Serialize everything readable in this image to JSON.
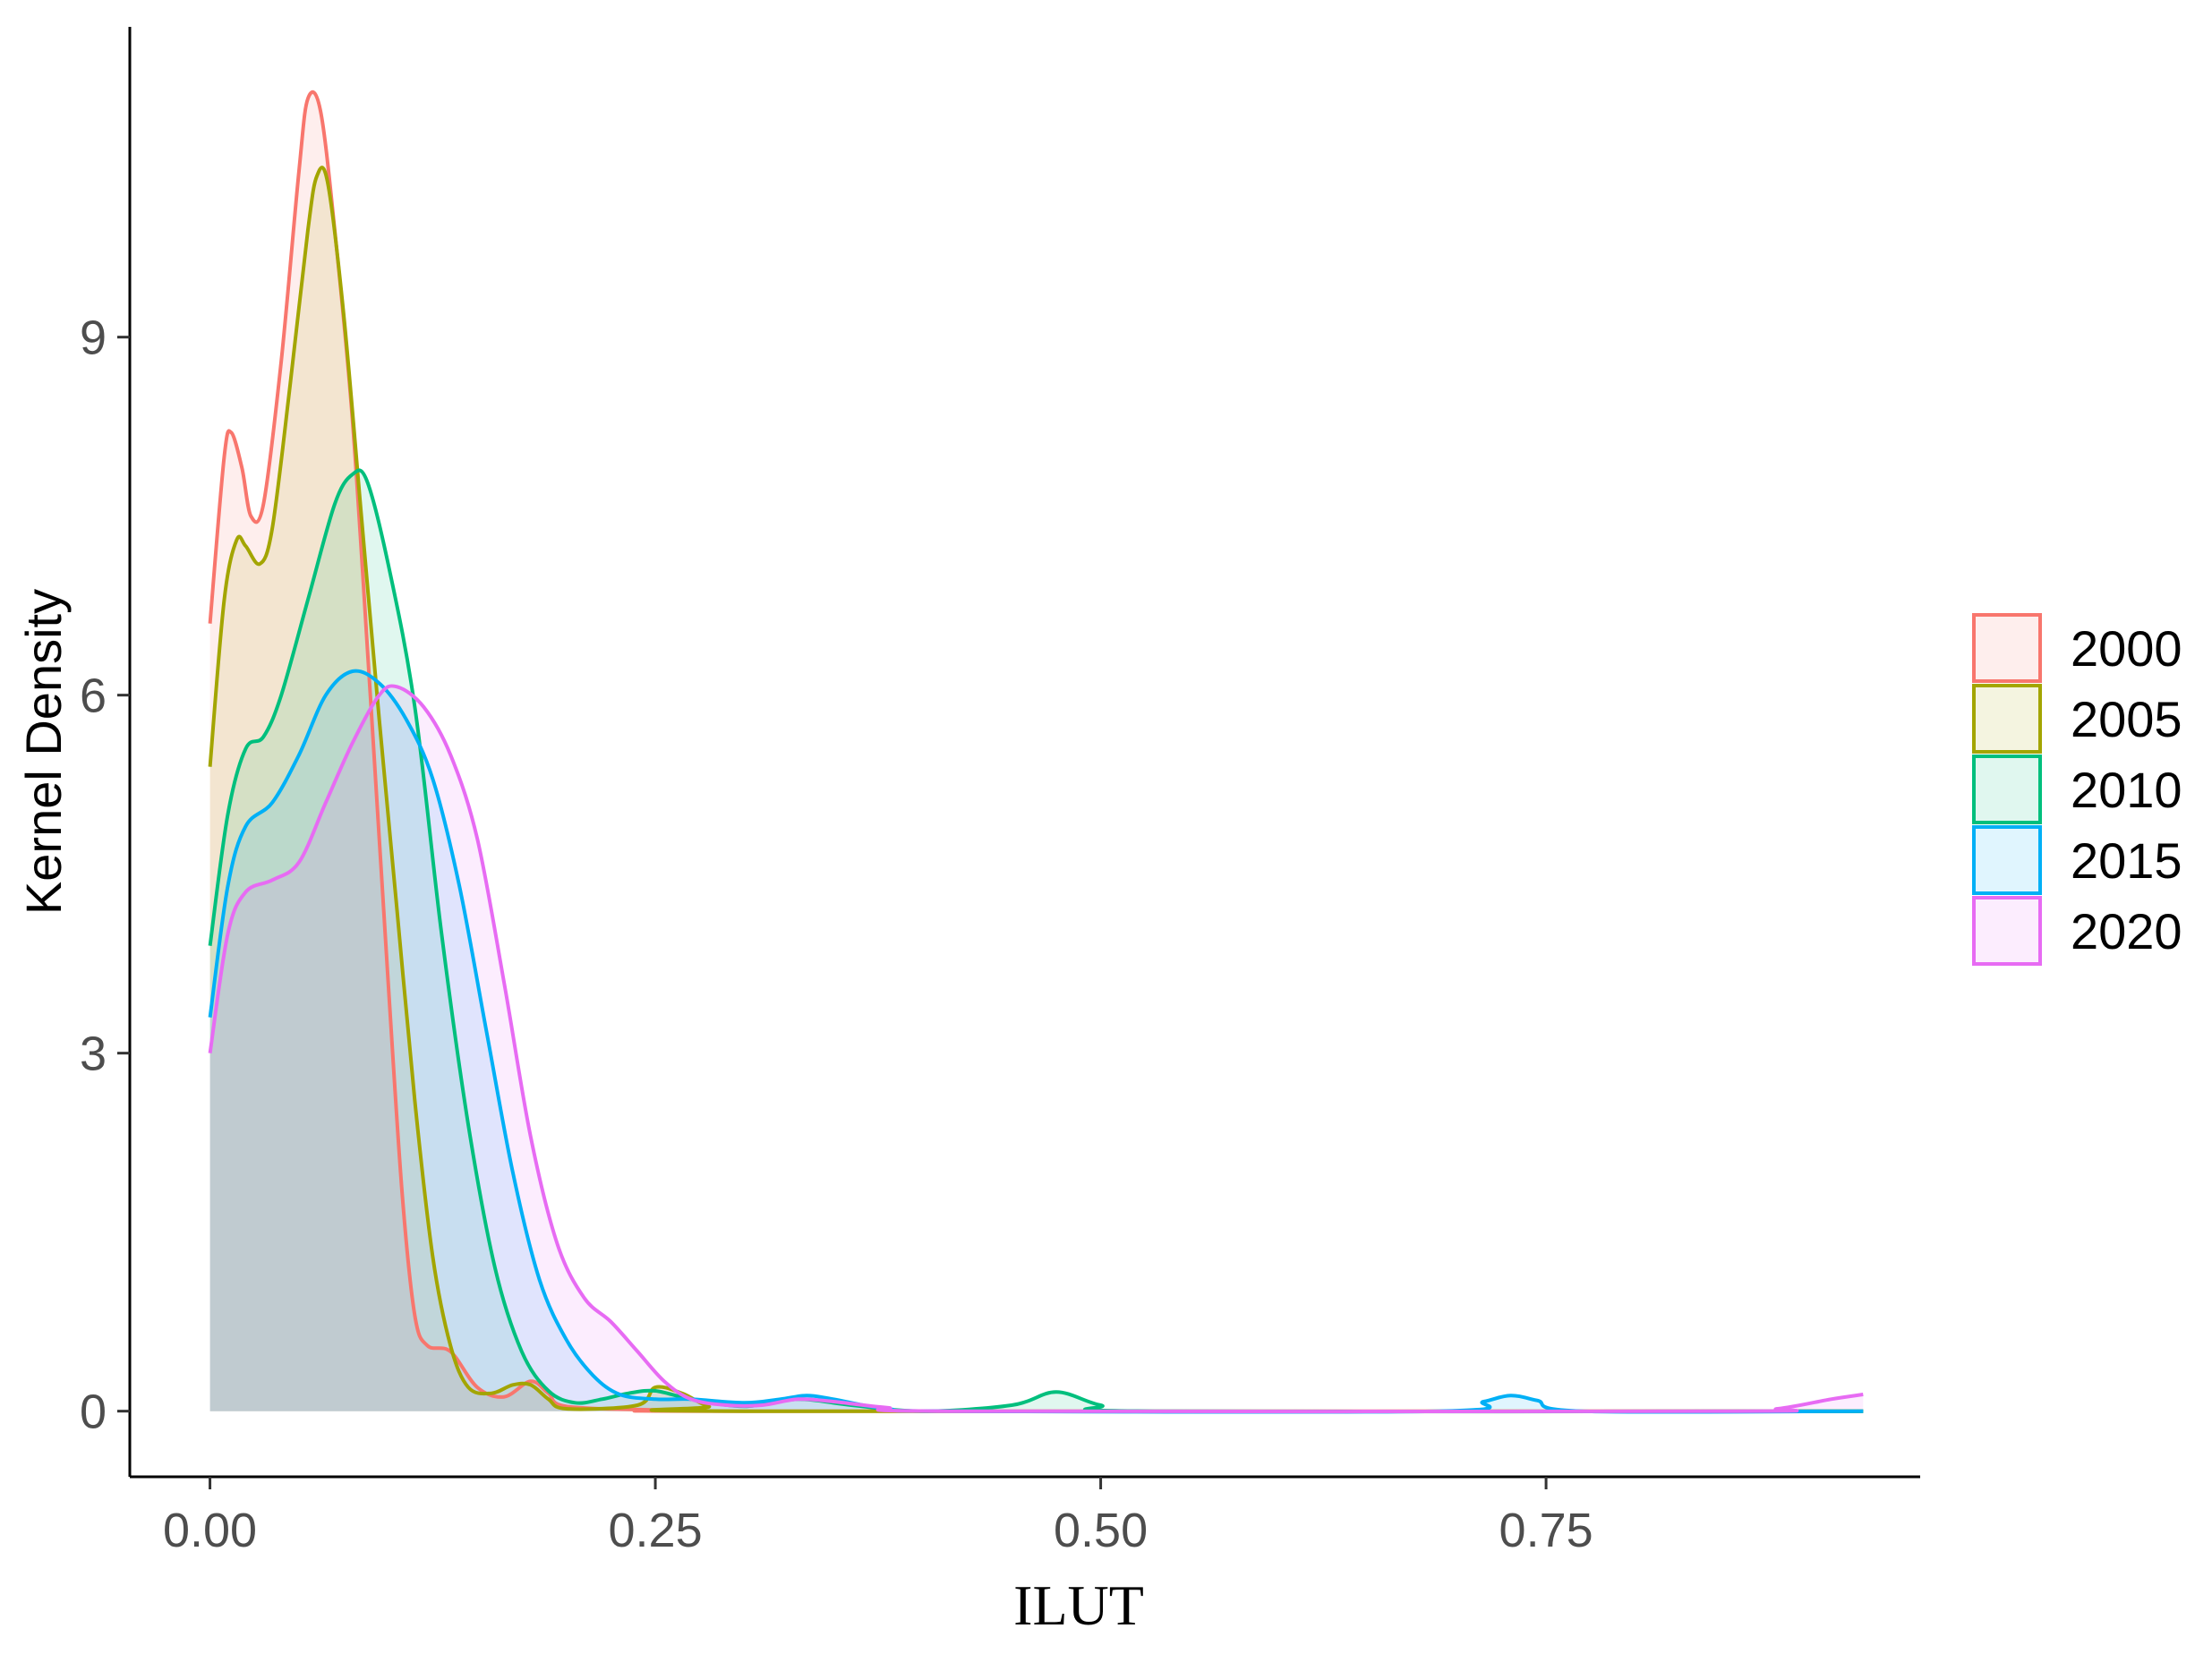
{
  "chart_data": {
    "type": "area",
    "xlabel": "ILUT",
    "ylabel": "Kernel Density",
    "xlim": [
      -0.045,
      0.96
    ],
    "ylim": [
      -0.55,
      11.6
    ],
    "x_ticks": [
      {
        "value": 0.0,
        "label": "0.00"
      },
      {
        "value": 0.25,
        "label": "0.25"
      },
      {
        "value": 0.5,
        "label": "0.50"
      },
      {
        "value": 0.75,
        "label": "0.75"
      }
    ],
    "y_ticks": [
      {
        "value": 0,
        "label": "0"
      },
      {
        "value": 3,
        "label": "3"
      },
      {
        "value": 6,
        "label": "6"
      },
      {
        "value": 9,
        "label": "9"
      }
    ],
    "grid": false,
    "legend_position": "right",
    "series": [
      {
        "name": "2000",
        "color": "#F8766D",
        "points": [
          [
            0,
            6.6
          ],
          [
            0.008,
            8.0
          ],
          [
            0.012,
            8.2
          ],
          [
            0.018,
            7.9
          ],
          [
            0.023,
            7.5
          ],
          [
            0.03,
            7.6
          ],
          [
            0.04,
            8.8
          ],
          [
            0.05,
            10.4
          ],
          [
            0.055,
            11.0
          ],
          [
            0.062,
            10.9
          ],
          [
            0.07,
            9.9
          ],
          [
            0.08,
            8.3
          ],
          [
            0.09,
            6.0
          ],
          [
            0.1,
            3.6
          ],
          [
            0.108,
            1.8
          ],
          [
            0.115,
            0.8
          ],
          [
            0.122,
            0.55
          ],
          [
            0.135,
            0.5
          ],
          [
            0.15,
            0.2
          ],
          [
            0.165,
            0.12
          ],
          [
            0.18,
            0.25
          ],
          [
            0.19,
            0.15
          ],
          [
            0.2,
            0.04
          ],
          [
            0.25,
            0.01
          ],
          [
            0.3,
            0.0
          ],
          [
            0.928,
            0.0
          ]
        ]
      },
      {
        "name": "2005",
        "color": "#A3A500",
        "points": [
          [
            0,
            5.4
          ],
          [
            0.008,
            6.8
          ],
          [
            0.015,
            7.3
          ],
          [
            0.02,
            7.25
          ],
          [
            0.028,
            7.1
          ],
          [
            0.035,
            7.4
          ],
          [
            0.045,
            8.6
          ],
          [
            0.055,
            9.9
          ],
          [
            0.06,
            10.35
          ],
          [
            0.066,
            10.3
          ],
          [
            0.075,
            9.2
          ],
          [
            0.085,
            7.5
          ],
          [
            0.095,
            5.8
          ],
          [
            0.105,
            4.2
          ],
          [
            0.115,
            2.6
          ],
          [
            0.125,
            1.3
          ],
          [
            0.135,
            0.55
          ],
          [
            0.145,
            0.2
          ],
          [
            0.158,
            0.15
          ],
          [
            0.17,
            0.22
          ],
          [
            0.18,
            0.22
          ],
          [
            0.19,
            0.1
          ],
          [
            0.2,
            0.02
          ],
          [
            0.24,
            0.05
          ],
          [
            0.25,
            0.2
          ],
          [
            0.265,
            0.15
          ],
          [
            0.28,
            0.04
          ],
          [
            0.3,
            0.0
          ],
          [
            0.928,
            0.0
          ]
        ]
      },
      {
        "name": "2010",
        "color": "#00BF7D",
        "points": [
          [
            0,
            3.9
          ],
          [
            0.01,
            5.0
          ],
          [
            0.02,
            5.55
          ],
          [
            0.03,
            5.65
          ],
          [
            0.04,
            6.0
          ],
          [
            0.055,
            6.8
          ],
          [
            0.07,
            7.6
          ],
          [
            0.08,
            7.85
          ],
          [
            0.088,
            7.8
          ],
          [
            0.1,
            7.1
          ],
          [
            0.115,
            5.9
          ],
          [
            0.13,
            4.0
          ],
          [
            0.145,
            2.4
          ],
          [
            0.16,
            1.2
          ],
          [
            0.175,
            0.5
          ],
          [
            0.19,
            0.17
          ],
          [
            0.205,
            0.07
          ],
          [
            0.22,
            0.1
          ],
          [
            0.235,
            0.15
          ],
          [
            0.25,
            0.17
          ],
          [
            0.27,
            0.1
          ],
          [
            0.3,
            0.04
          ],
          [
            0.33,
            0.1
          ],
          [
            0.36,
            0.05
          ],
          [
            0.4,
            0.0
          ],
          [
            0.45,
            0.05
          ],
          [
            0.475,
            0.16
          ],
          [
            0.5,
            0.05
          ],
          [
            0.53,
            0.0
          ],
          [
            0.928,
            0.0
          ]
        ]
      },
      {
        "name": "2015",
        "color": "#00B0F6",
        "points": [
          [
            0,
            3.3
          ],
          [
            0.01,
            4.4
          ],
          [
            0.02,
            4.9
          ],
          [
            0.035,
            5.1
          ],
          [
            0.05,
            5.5
          ],
          [
            0.065,
            6.0
          ],
          [
            0.08,
            6.2
          ],
          [
            0.095,
            6.1
          ],
          [
            0.11,
            5.8
          ],
          [
            0.125,
            5.3
          ],
          [
            0.14,
            4.4
          ],
          [
            0.155,
            3.2
          ],
          [
            0.17,
            2.0
          ],
          [
            0.185,
            1.1
          ],
          [
            0.2,
            0.6
          ],
          [
            0.215,
            0.3
          ],
          [
            0.23,
            0.14
          ],
          [
            0.25,
            0.1
          ],
          [
            0.27,
            0.1
          ],
          [
            0.3,
            0.07
          ],
          [
            0.32,
            0.1
          ],
          [
            0.335,
            0.13
          ],
          [
            0.35,
            0.1
          ],
          [
            0.38,
            0.02
          ],
          [
            0.42,
            0.0
          ],
          [
            0.69,
            0.0
          ],
          [
            0.715,
            0.08
          ],
          [
            0.73,
            0.13
          ],
          [
            0.745,
            0.09
          ],
          [
            0.77,
            0.0
          ],
          [
            0.928,
            0.0
          ]
        ]
      },
      {
        "name": "2020",
        "color": "#E76BF3",
        "points": [
          [
            0,
            3.0
          ],
          [
            0.01,
            4.0
          ],
          [
            0.02,
            4.35
          ],
          [
            0.035,
            4.45
          ],
          [
            0.05,
            4.6
          ],
          [
            0.065,
            5.1
          ],
          [
            0.08,
            5.6
          ],
          [
            0.095,
            6.0
          ],
          [
            0.105,
            6.07
          ],
          [
            0.12,
            5.9
          ],
          [
            0.135,
            5.5
          ],
          [
            0.15,
            4.8
          ],
          [
            0.165,
            3.6
          ],
          [
            0.18,
            2.3
          ],
          [
            0.195,
            1.4
          ],
          [
            0.21,
            0.95
          ],
          [
            0.225,
            0.75
          ],
          [
            0.24,
            0.5
          ],
          [
            0.255,
            0.25
          ],
          [
            0.27,
            0.1
          ],
          [
            0.29,
            0.05
          ],
          [
            0.31,
            0.05
          ],
          [
            0.33,
            0.1
          ],
          [
            0.35,
            0.08
          ],
          [
            0.38,
            0.03
          ],
          [
            0.42,
            0.0
          ],
          [
            0.85,
            0.0
          ],
          [
            0.88,
            0.02
          ],
          [
            0.91,
            0.1
          ],
          [
            0.928,
            0.14
          ]
        ]
      }
    ]
  }
}
